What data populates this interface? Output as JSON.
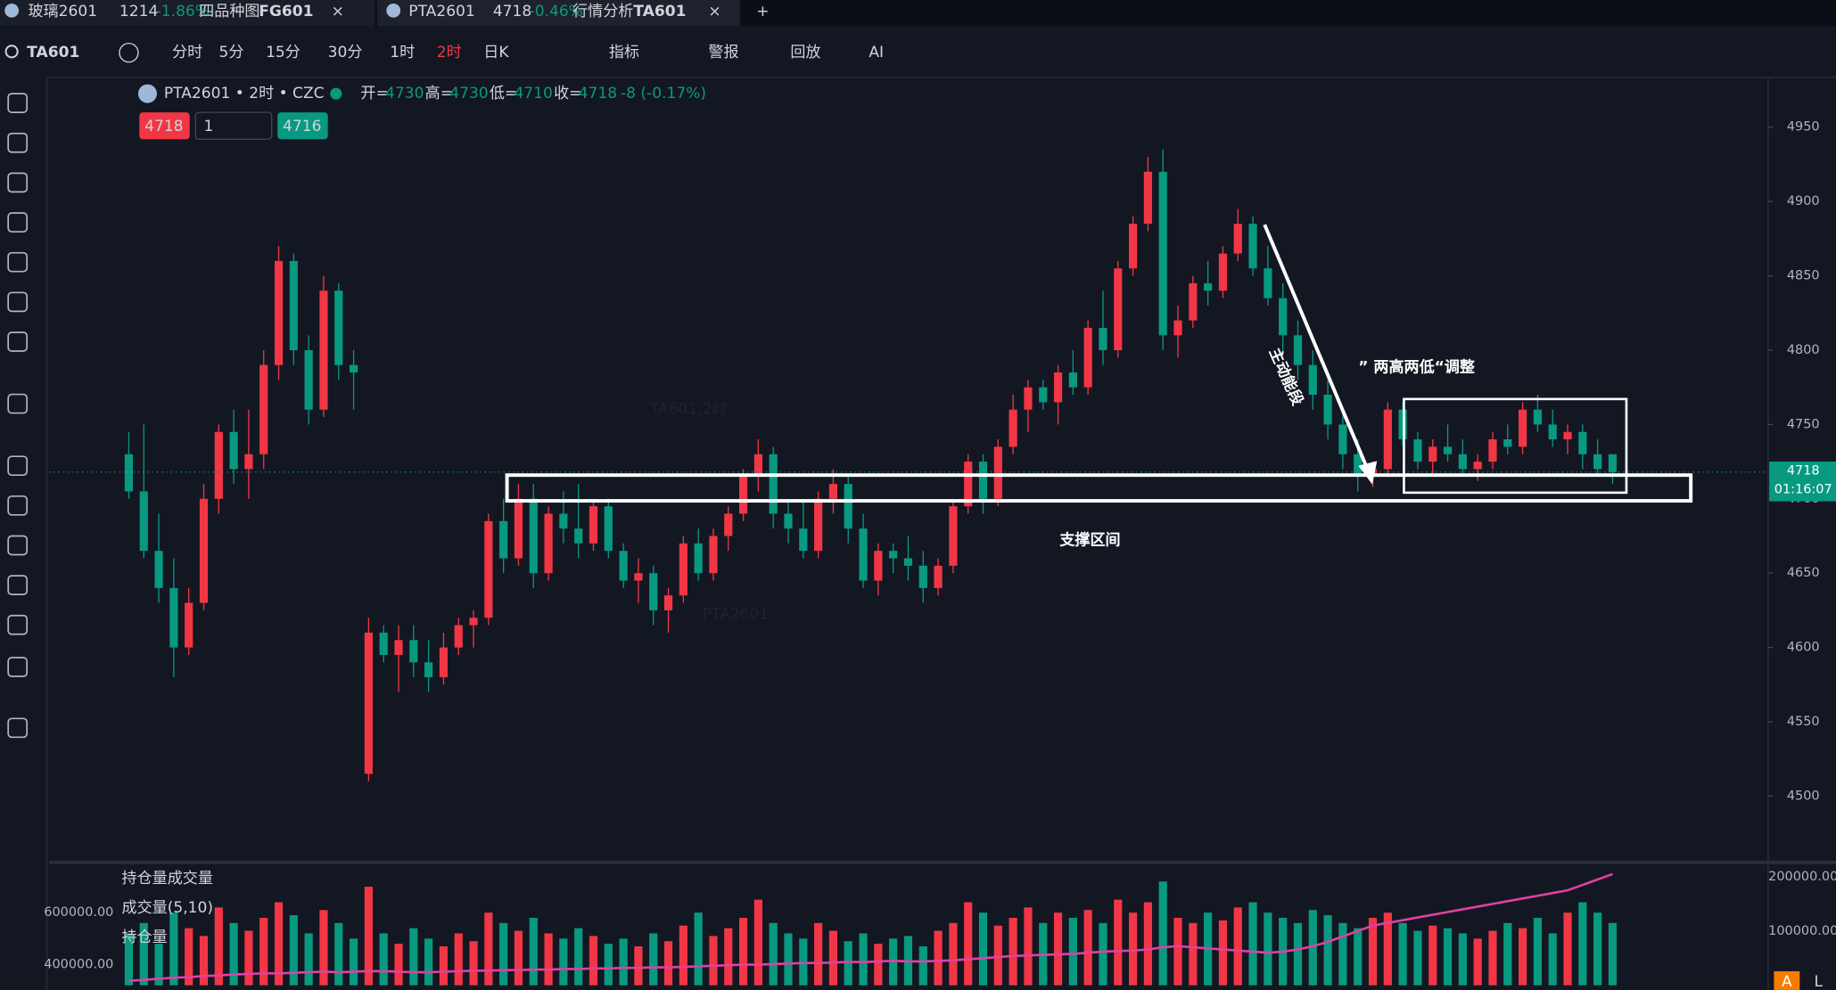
{
  "tabs": [
    {
      "name": "玻璃2601",
      "price": "1214",
      "change": "-1.86%",
      "view": "四品种图",
      "code": "FG601"
    },
    {
      "name": "PTA2601",
      "price": "4718",
      "change": "-0.46%",
      "view": "行情分析",
      "code": "TA601"
    }
  ],
  "toolbar": {
    "symbol": "TA601",
    "periods": [
      "分时",
      "5分",
      "15分",
      "30分",
      "1时",
      "2时",
      "日K"
    ],
    "active_period": "2时",
    "buttons": [
      "指标",
      "警报",
      "回放",
      "AI"
    ]
  },
  "order_panel": {
    "sell": 4718,
    "qty": 1,
    "buy": 4716
  },
  "chart_data": [
    {
      "type": "candlestick",
      "title": "PTA2601 • 2时 • CZC",
      "ohlc_labels": [
        "开=",
        "高=",
        "低=",
        "收="
      ],
      "change": "-8 (-0.17%)",
      "countdown": "01:16:07",
      "up_color": "#f23645",
      "down_color": "#089981",
      "watermarks": [
        "TA601,2时",
        "PTA2601"
      ],
      "annotations": [
        "主动能段",
        "” 两高两低“调整",
        "支撑区间"
      ],
      "ylim": [
        4457,
        4982
      ],
      "yticks": [
        4500,
        4550,
        4600,
        4650,
        4700,
        4750,
        4800,
        4850,
        4900,
        4950
      ],
      "candles": [
        [
          4730,
          4745,
          4700,
          4705
        ],
        [
          4705,
          4750,
          4660,
          4665
        ],
        [
          4665,
          4690,
          4630,
          4640
        ],
        [
          4640,
          4660,
          4580,
          4600
        ],
        [
          4600,
          4640,
          4595,
          4630
        ],
        [
          4630,
          4710,
          4625,
          4700
        ],
        [
          4700,
          4750,
          4690,
          4745
        ],
        [
          4745,
          4760,
          4710,
          4720
        ],
        [
          4720,
          4760,
          4700,
          4730
        ],
        [
          4730,
          4800,
          4720,
          4790
        ],
        [
          4790,
          4870,
          4780,
          4860
        ],
        [
          4860,
          4865,
          4790,
          4800
        ],
        [
          4800,
          4810,
          4750,
          4760
        ],
        [
          4760,
          4850,
          4755,
          4840
        ],
        [
          4840,
          4845,
          4780,
          4790
        ],
        [
          4790,
          4800,
          4760,
          4785
        ],
        [
          4515,
          4620,
          4510,
          4610
        ],
        [
          4610,
          4615,
          4590,
          4595
        ],
        [
          4595,
          4615,
          4570,
          4605
        ],
        [
          4605,
          4615,
          4580,
          4590
        ],
        [
          4590,
          4605,
          4570,
          4580
        ],
        [
          4580,
          4610,
          4575,
          4600
        ],
        [
          4600,
          4620,
          4595,
          4615
        ],
        [
          4615,
          4625,
          4600,
          4620
        ],
        [
          4620,
          4690,
          4615,
          4685
        ],
        [
          4685,
          4700,
          4650,
          4660
        ],
        [
          4660,
          4710,
          4655,
          4700
        ],
        [
          4700,
          4710,
          4640,
          4650
        ],
        [
          4650,
          4695,
          4645,
          4690
        ],
        [
          4690,
          4705,
          4670,
          4680
        ],
        [
          4680,
          4710,
          4660,
          4670
        ],
        [
          4670,
          4700,
          4665,
          4695
        ],
        [
          4695,
          4700,
          4660,
          4665
        ],
        [
          4665,
          4670,
          4640,
          4645
        ],
        [
          4645,
          4660,
          4630,
          4650
        ],
        [
          4650,
          4655,
          4615,
          4625
        ],
        [
          4625,
          4640,
          4610,
          4635
        ],
        [
          4635,
          4675,
          4630,
          4670
        ],
        [
          4670,
          4680,
          4645,
          4650
        ],
        [
          4650,
          4680,
          4645,
          4675
        ],
        [
          4675,
          4695,
          4665,
          4690
        ],
        [
          4690,
          4720,
          4685,
          4715
        ],
        [
          4715,
          4740,
          4705,
          4730
        ],
        [
          4730,
          4735,
          4680,
          4690
        ],
        [
          4690,
          4700,
          4670,
          4680
        ],
        [
          4680,
          4700,
          4660,
          4665
        ],
        [
          4665,
          4705,
          4660,
          4700
        ],
        [
          4700,
          4720,
          4690,
          4710
        ],
        [
          4710,
          4715,
          4670,
          4680
        ],
        [
          4680,
          4690,
          4640,
          4645
        ],
        [
          4645,
          4670,
          4635,
          4665
        ],
        [
          4665,
          4670,
          4650,
          4660
        ],
        [
          4660,
          4675,
          4645,
          4655
        ],
        [
          4655,
          4665,
          4630,
          4640
        ],
        [
          4640,
          4660,
          4635,
          4655
        ],
        [
          4655,
          4700,
          4650,
          4695
        ],
        [
          4695,
          4730,
          4690,
          4725
        ],
        [
          4725,
          4730,
          4690,
          4700
        ],
        [
          4700,
          4740,
          4695,
          4735
        ],
        [
          4735,
          4770,
          4730,
          4760
        ],
        [
          4760,
          4780,
          4745,
          4775
        ],
        [
          4775,
          4780,
          4760,
          4765
        ],
        [
          4765,
          4790,
          4750,
          4785
        ],
        [
          4785,
          4800,
          4770,
          4775
        ],
        [
          4775,
          4820,
          4770,
          4815
        ],
        [
          4815,
          4840,
          4790,
          4800
        ],
        [
          4800,
          4860,
          4795,
          4855
        ],
        [
          4855,
          4890,
          4850,
          4885
        ],
        [
          4885,
          4930,
          4880,
          4920
        ],
        [
          4920,
          4935,
          4800,
          4810
        ],
        [
          4810,
          4830,
          4795,
          4820
        ],
        [
          4820,
          4850,
          4815,
          4845
        ],
        [
          4845,
          4860,
          4830,
          4840
        ],
        [
          4840,
          4870,
          4835,
          4865
        ],
        [
          4865,
          4895,
          4860,
          4885
        ],
        [
          4885,
          4890,
          4850,
          4855
        ],
        [
          4855,
          4870,
          4830,
          4835
        ],
        [
          4835,
          4845,
          4800,
          4810
        ],
        [
          4810,
          4820,
          4780,
          4790
        ],
        [
          4790,
          4800,
          4760,
          4770
        ],
        [
          4770,
          4780,
          4740,
          4750
        ],
        [
          4750,
          4760,
          4720,
          4730
        ],
        [
          4730,
          4740,
          4705,
          4715
        ],
        [
          4715,
          4725,
          4708,
          4720
        ],
        [
          4720,
          4765,
          4715,
          4760
        ],
        [
          4760,
          4765,
          4735,
          4740
        ],
        [
          4740,
          4745,
          4720,
          4725
        ],
        [
          4725,
          4740,
          4715,
          4735
        ],
        [
          4735,
          4750,
          4725,
          4730
        ],
        [
          4730,
          4740,
          4715,
          4720
        ],
        [
          4720,
          4730,
          4712,
          4725
        ],
        [
          4725,
          4745,
          4720,
          4740
        ],
        [
          4740,
          4750,
          4730,
          4735
        ],
        [
          4735,
          4765,
          4730,
          4760
        ],
        [
          4760,
          4770,
          4745,
          4750
        ],
        [
          4750,
          4760,
          4735,
          4740
        ],
        [
          4740,
          4750,
          4730,
          4745
        ],
        [
          4745,
          4750,
          4720,
          4730
        ],
        [
          4730,
          4740,
          4715,
          4720
        ],
        [
          4730,
          4730,
          4710,
          4718
        ]
      ]
    },
    {
      "type": "bar",
      "title": "持仓量成交量",
      "ylim": [
        320000,
        780000
      ],
      "yticks": [
        {
          "value": 400000,
          "label": "400000.00"
        },
        {
          "value": 600000,
          "label": "600000.00"
        }
      ],
      "y2lim": [
        0,
        220000
      ],
      "y2ticks": [
        {
          "value": 100000,
          "label": "100000.00"
        },
        {
          "value": 200000,
          "label": "200000.00"
        }
      ],
      "series": [
        {
          "name": "成交量(5,10)",
          "values": [
            520000,
            560000,
            480000,
            600000,
            540000,
            510000,
            620000,
            560000,
            530000,
            580000,
            640000,
            590000,
            520000,
            610000,
            560000,
            500000,
            700000,
            520000,
            480000,
            540000,
            500000,
            470000,
            520000,
            490000,
            600000,
            560000,
            530000,
            580000,
            520000,
            500000,
            540000,
            510000,
            480000,
            500000,
            470000,
            520000,
            490000,
            550000,
            600000,
            510000,
            540000,
            580000,
            650000,
            560000,
            520000,
            500000,
            560000,
            530000,
            490000,
            520000,
            480000,
            500000,
            510000,
            470000,
            530000,
            560000,
            640000,
            600000,
            550000,
            580000,
            620000,
            560000,
            600000,
            580000,
            610000,
            560000,
            650000,
            600000,
            640000,
            720000,
            580000,
            560000,
            600000,
            570000,
            620000,
            640000,
            600000,
            580000,
            560000,
            610000,
            590000,
            560000,
            540000,
            580000,
            600000,
            560000,
            530000,
            550000,
            540000,
            520000,
            500000,
            530000,
            560000,
            540000,
            580000,
            520000,
            600000,
            640000,
            600000,
            560000
          ]
        },
        {
          "name": "持仓量",
          "axis": "y2",
          "color": "#e040a0",
          "values": [
            8000,
            10000,
            12000,
            14000,
            15000,
            17000,
            18000,
            20000,
            21000,
            22000,
            22000,
            23000,
            24000,
            25000,
            24000,
            25000,
            26000,
            26000,
            25000,
            24000,
            24000,
            25000,
            26000,
            27000,
            27000,
            28000,
            28000,
            29000,
            29000,
            30000,
            30000,
            31000,
            31000,
            32000,
            32000,
            33000,
            33000,
            34000,
            35000,
            36000,
            37000,
            38000,
            38000,
            39000,
            40000,
            41000,
            41000,
            42000,
            43000,
            43000,
            44000,
            45000,
            44000,
            44000,
            45000,
            46000,
            48000,
            50000,
            52000,
            54000,
            55000,
            56000,
            57000,
            58000,
            60000,
            62000,
            63000,
            64000,
            66000,
            70000,
            72000,
            70000,
            68000,
            66000,
            64000,
            62000,
            60000,
            62000,
            66000,
            72000,
            80000,
            90000,
            100000,
            110000,
            115000,
            120000,
            125000,
            130000,
            135000,
            140000,
            145000,
            150000,
            155000,
            160000,
            165000,
            170000,
            175000,
            185000,
            195000,
            205000
          ]
        }
      ],
      "corner": [
        "A",
        "L"
      ]
    }
  ]
}
